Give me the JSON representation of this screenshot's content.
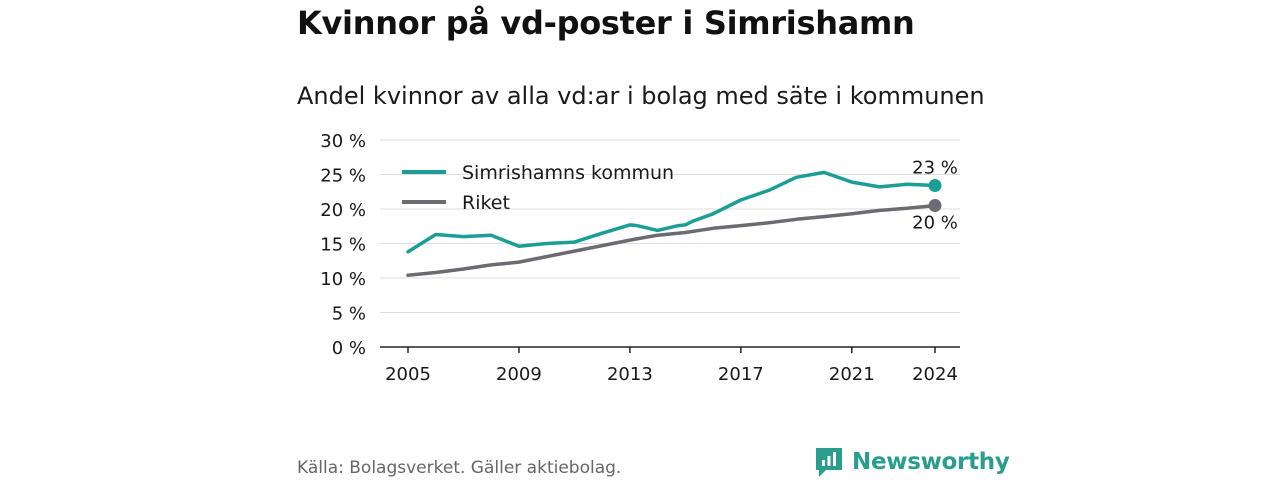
{
  "header": {
    "title": "Kvinnor på vd-poster i Simrishamn",
    "subtitle": "Andel kvinnor av alla vd:ar i bolag med säte i kommunen"
  },
  "footer": {
    "source": "Källa: Bolagsverket. Gäller aktiebolag.",
    "brand": "Newsworthy",
    "brand_color": "#2a9d8f"
  },
  "chart_data": {
    "type": "line",
    "xlim": [
      2005,
      2024
    ],
    "ylim": [
      0,
      30
    ],
    "x_ticks": [
      2005,
      2009,
      2013,
      2017,
      2021,
      2024
    ],
    "x_tick_labels": [
      "2005",
      "2009",
      "2013",
      "2017",
      "2021",
      "2024"
    ],
    "y_ticks": [
      0,
      5,
      10,
      15,
      20,
      25,
      30
    ],
    "y_tick_labels": [
      "0 %",
      "5 %",
      "10 %",
      "15 %",
      "20 %",
      "25 %",
      "30 %"
    ],
    "grid": true,
    "legend_position": "top-left",
    "series": [
      {
        "name": "Simrishamns kommun",
        "color": "#1a9e96",
        "end_label": "23 %",
        "points": [
          [
            2005,
            13.8
          ],
          [
            2006,
            16.3
          ],
          [
            2007,
            16.0
          ],
          [
            2008,
            16.2
          ],
          [
            2009,
            14.6
          ],
          [
            2010,
            15.0
          ],
          [
            2011,
            15.2
          ],
          [
            2012,
            16.5
          ],
          [
            2013,
            17.7
          ],
          [
            2013.25,
            17.6
          ],
          [
            2014,
            16.9
          ],
          [
            2014.75,
            17.6
          ],
          [
            2015,
            17.7
          ],
          [
            2015.25,
            18.2
          ],
          [
            2016,
            19.3
          ],
          [
            2017,
            21.3
          ],
          [
            2018,
            22.7
          ],
          [
            2019,
            24.6
          ],
          [
            2020,
            25.3
          ],
          [
            2021,
            23.9
          ],
          [
            2022,
            23.2
          ],
          [
            2023,
            23.6
          ],
          [
            2024,
            23.4
          ]
        ]
      },
      {
        "name": "Riket",
        "color": "#6b6b73",
        "end_label": "20 %",
        "points": [
          [
            2005,
            10.4
          ],
          [
            2006,
            10.8
          ],
          [
            2007,
            11.3
          ],
          [
            2008,
            11.9
          ],
          [
            2009,
            12.3
          ],
          [
            2010,
            13.1
          ],
          [
            2011,
            13.9
          ],
          [
            2012,
            14.7
          ],
          [
            2013,
            15.5
          ],
          [
            2014,
            16.2
          ],
          [
            2015,
            16.6
          ],
          [
            2016,
            17.2
          ],
          [
            2017,
            17.6
          ],
          [
            2018,
            18.0
          ],
          [
            2019,
            18.5
          ],
          [
            2020,
            18.9
          ],
          [
            2021,
            19.3
          ],
          [
            2022,
            19.8
          ],
          [
            2023,
            20.1
          ],
          [
            2024,
            20.5
          ]
        ]
      }
    ]
  }
}
